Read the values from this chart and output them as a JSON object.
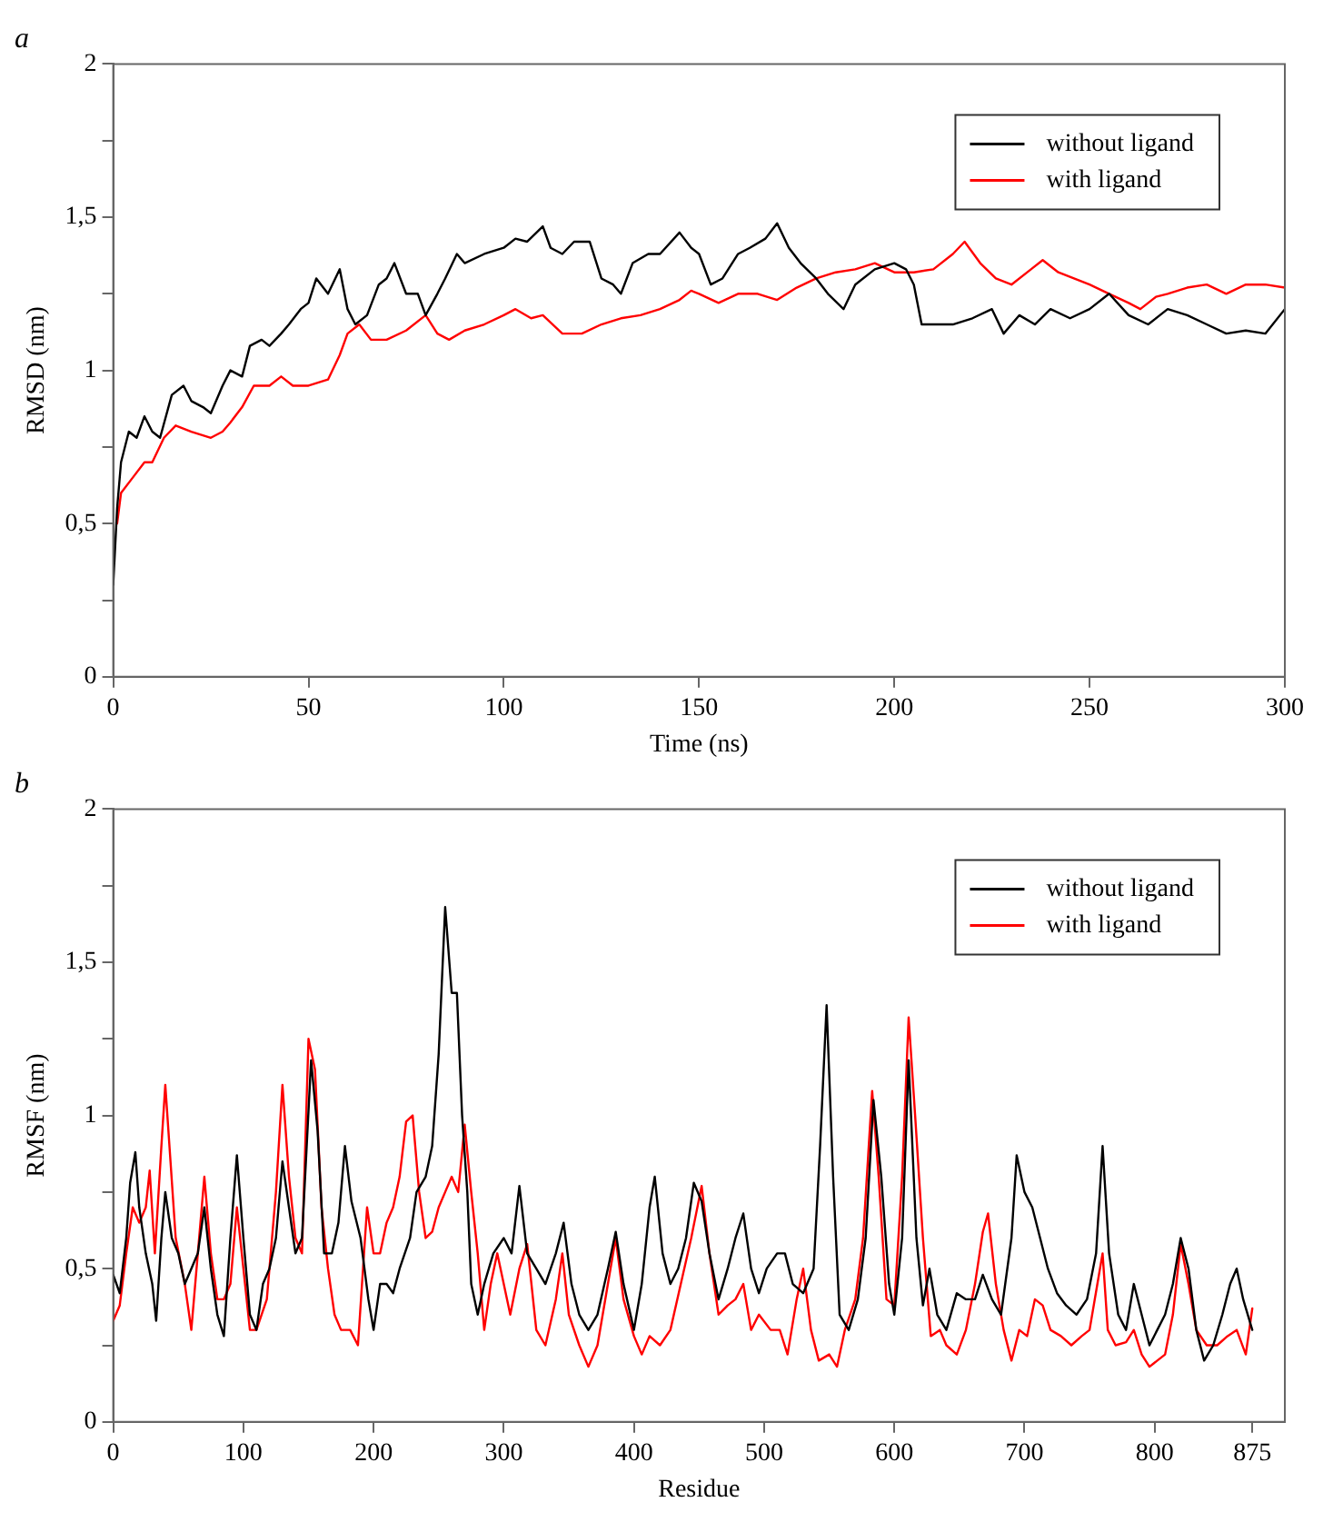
{
  "chart_data": [
    {
      "type": "line",
      "title": "a",
      "xlabel": "Time (ns)",
      "ylabel": "RMSD (nm)",
      "xlim": [
        0,
        300
      ],
      "xticks": [
        0,
        50,
        100,
        150,
        200,
        250,
        300
      ],
      "ylim": [
        0,
        2
      ],
      "yticks": [
        0,
        {
          "value": 0.25,
          "label": null
        },
        {
          "value": 0.5,
          "label": "0,5"
        },
        {
          "value": 0.75,
          "label": null
        },
        1,
        {
          "value": 1.25,
          "label": null
        },
        {
          "value": 1.5,
          "label": "1,5"
        },
        {
          "value": 1.75,
          "label": null
        },
        2
      ],
      "grid": false,
      "legend": "top right",
      "marker": "none",
      "line_style": "solid",
      "series": [
        {
          "name": "without ligand",
          "color": "#000000",
          "x": [
            0,
            1,
            2,
            4,
            6,
            8,
            10,
            12,
            15,
            18,
            20,
            23,
            25,
            28,
            30,
            33,
            35,
            38,
            40,
            43,
            45,
            48,
            50,
            52,
            55,
            58,
            60,
            62,
            65,
            68,
            70,
            72,
            75,
            78,
            80,
            83,
            85,
            88,
            90,
            95,
            100,
            103,
            106,
            110,
            112,
            115,
            118,
            122,
            125,
            128,
            130,
            133,
            137,
            140,
            145,
            148,
            150,
            153,
            156,
            160,
            163,
            167,
            170,
            173,
            176,
            180,
            183,
            187,
            190,
            195,
            200,
            203,
            205,
            207,
            210,
            215,
            220,
            225,
            228,
            232,
            236,
            240,
            245,
            250,
            255,
            260,
            265,
            270,
            275,
            280,
            285,
            290,
            295,
            300
          ],
          "values": [
            0.3,
            0.55,
            0.7,
            0.8,
            0.78,
            0.85,
            0.8,
            0.78,
            0.92,
            0.95,
            0.9,
            0.88,
            0.86,
            0.95,
            1.0,
            0.98,
            1.08,
            1.1,
            1.08,
            1.12,
            1.15,
            1.2,
            1.22,
            1.3,
            1.25,
            1.33,
            1.2,
            1.15,
            1.18,
            1.28,
            1.3,
            1.35,
            1.25,
            1.25,
            1.18,
            1.25,
            1.3,
            1.38,
            1.35,
            1.38,
            1.4,
            1.43,
            1.42,
            1.47,
            1.4,
            1.38,
            1.42,
            1.42,
            1.3,
            1.28,
            1.25,
            1.35,
            1.38,
            1.38,
            1.45,
            1.4,
            1.38,
            1.28,
            1.3,
            1.38,
            1.4,
            1.43,
            1.48,
            1.4,
            1.35,
            1.3,
            1.25,
            1.2,
            1.28,
            1.33,
            1.35,
            1.33,
            1.28,
            1.15,
            1.15,
            1.15,
            1.17,
            1.2,
            1.12,
            1.18,
            1.15,
            1.2,
            1.17,
            1.2,
            1.25,
            1.18,
            1.15,
            1.2,
            1.18,
            1.15,
            1.12,
            1.13,
            1.12,
            1.2
          ]
        },
        {
          "name": "with ligand",
          "color": "#ff0000",
          "x": [
            1,
            2,
            5,
            8,
            10,
            13,
            16,
            20,
            25,
            28,
            30,
            33,
            36,
            40,
            43,
            46,
            50,
            55,
            58,
            60,
            63,
            66,
            70,
            75,
            80,
            83,
            86,
            90,
            95,
            100,
            103,
            107,
            110,
            115,
            120,
            125,
            130,
            135,
            140,
            145,
            148,
            150,
            155,
            160,
            165,
            170,
            175,
            180,
            185,
            190,
            195,
            200,
            205,
            210,
            215,
            218,
            222,
            226,
            230,
            235,
            238,
            242,
            246,
            250,
            255,
            260,
            263,
            267,
            270,
            275,
            280,
            285,
            290,
            295,
            300
          ],
          "values": [
            0.5,
            0.6,
            0.65,
            0.7,
            0.7,
            0.78,
            0.82,
            0.8,
            0.78,
            0.8,
            0.83,
            0.88,
            0.95,
            0.95,
            0.98,
            0.95,
            0.95,
            0.97,
            1.05,
            1.12,
            1.15,
            1.1,
            1.1,
            1.13,
            1.18,
            1.12,
            1.1,
            1.13,
            1.15,
            1.18,
            1.2,
            1.17,
            1.18,
            1.12,
            1.12,
            1.15,
            1.17,
            1.18,
            1.2,
            1.23,
            1.26,
            1.25,
            1.22,
            1.25,
            1.25,
            1.23,
            1.27,
            1.3,
            1.32,
            1.33,
            1.35,
            1.32,
            1.32,
            1.33,
            1.38,
            1.42,
            1.35,
            1.3,
            1.28,
            1.33,
            1.36,
            1.32,
            1.3,
            1.28,
            1.25,
            1.22,
            1.2,
            1.24,
            1.25,
            1.27,
            1.28,
            1.25,
            1.28,
            1.28,
            1.27
          ]
        }
      ]
    },
    {
      "type": "line",
      "title": "b",
      "xlabel": "Residue",
      "ylabel": "RMSF (nm)",
      "xlim": [
        0,
        900
      ],
      "xticks": [
        0,
        100,
        200,
        300,
        400,
        500,
        600,
        700,
        800,
        875
      ],
      "ylim": [
        0,
        2
      ],
      "yticks": [
        0,
        {
          "value": 0.25,
          "label": null
        },
        {
          "value": 0.5,
          "label": "0,5"
        },
        {
          "value": 0.75,
          "label": null
        },
        1,
        {
          "value": 1.25,
          "label": null
        },
        {
          "value": 1.5,
          "label": "1,5"
        },
        {
          "value": 1.75,
          "label": null
        },
        2
      ],
      "grid": false,
      "legend": "top right",
      "marker": "none",
      "line_style": "solid",
      "series": [
        {
          "name": "without ligand",
          "color": "#000000",
          "x": [
            0,
            5,
            10,
            13,
            17,
            20,
            25,
            30,
            33,
            37,
            40,
            45,
            50,
            55,
            60,
            65,
            70,
            75,
            80,
            85,
            90,
            95,
            100,
            105,
            110,
            115,
            120,
            125,
            130,
            135,
            140,
            145,
            152,
            157,
            162,
            168,
            173,
            178,
            183,
            190,
            196,
            200,
            205,
            210,
            215,
            220,
            228,
            233,
            240,
            245,
            250,
            255,
            260,
            264,
            268,
            272,
            275,
            280,
            285,
            292,
            300,
            306,
            312,
            318,
            325,
            332,
            340,
            346,
            352,
            358,
            365,
            372,
            380,
            386,
            392,
            400,
            406,
            412,
            416,
            422,
            428,
            434,
            440,
            446,
            452,
            458,
            465,
            472,
            478,
            484,
            490,
            496,
            502,
            510,
            516,
            522,
            530,
            538,
            543,
            548,
            553,
            558,
            565,
            572,
            578,
            584,
            590,
            596,
            600,
            606,
            611,
            617,
            622,
            627,
            633,
            640,
            648,
            655,
            662,
            668,
            675,
            682,
            690,
            694,
            700,
            706,
            712,
            718,
            725,
            732,
            740,
            748,
            755,
            760,
            765,
            772,
            778,
            784,
            790,
            796,
            802,
            808,
            814,
            820,
            826,
            832,
            838,
            845,
            852,
            858,
            863,
            868,
            875
          ],
          "values": [
            0.48,
            0.42,
            0.6,
            0.78,
            0.88,
            0.7,
            0.55,
            0.45,
            0.33,
            0.6,
            0.75,
            0.6,
            0.55,
            0.45,
            0.5,
            0.55,
            0.7,
            0.5,
            0.35,
            0.28,
            0.6,
            0.87,
            0.6,
            0.35,
            0.3,
            0.45,
            0.5,
            0.6,
            0.85,
            0.7,
            0.55,
            0.6,
            1.18,
            0.95,
            0.55,
            0.55,
            0.65,
            0.9,
            0.72,
            0.6,
            0.4,
            0.3,
            0.45,
            0.45,
            0.42,
            0.5,
            0.6,
            0.75,
            0.8,
            0.9,
            1.2,
            1.68,
            1.4,
            1.4,
            1.0,
            0.75,
            0.45,
            0.35,
            0.45,
            0.55,
            0.6,
            0.55,
            0.77,
            0.55,
            0.5,
            0.45,
            0.55,
            0.65,
            0.45,
            0.35,
            0.3,
            0.35,
            0.5,
            0.62,
            0.45,
            0.3,
            0.45,
            0.7,
            0.8,
            0.55,
            0.45,
            0.5,
            0.6,
            0.78,
            0.72,
            0.55,
            0.4,
            0.5,
            0.6,
            0.68,
            0.5,
            0.42,
            0.5,
            0.55,
            0.55,
            0.45,
            0.42,
            0.5,
            0.9,
            1.36,
            0.8,
            0.35,
            0.3,
            0.4,
            0.6,
            1.05,
            0.8,
            0.45,
            0.35,
            0.6,
            1.18,
            0.6,
            0.38,
            0.5,
            0.35,
            0.3,
            0.42,
            0.4,
            0.4,
            0.48,
            0.4,
            0.35,
            0.6,
            0.87,
            0.75,
            0.7,
            0.6,
            0.5,
            0.42,
            0.38,
            0.35,
            0.4,
            0.55,
            0.9,
            0.55,
            0.35,
            0.3,
            0.45,
            0.35,
            0.25,
            0.3,
            0.35,
            0.45,
            0.6,
            0.5,
            0.3,
            0.2,
            0.25,
            0.35,
            0.45,
            0.5,
            0.4,
            0.3
          ]
        },
        {
          "name": "with ligand",
          "color": "#ff0000",
          "x": [
            0,
            5,
            10,
            15,
            20,
            25,
            28,
            32,
            37,
            40,
            44,
            48,
            55,
            60,
            65,
            70,
            75,
            80,
            85,
            90,
            95,
            100,
            105,
            110,
            118,
            125,
            130,
            135,
            140,
            145,
            150,
            155,
            160,
            165,
            170,
            175,
            182,
            188,
            195,
            200,
            205,
            210,
            215,
            220,
            225,
            230,
            235,
            240,
            245,
            250,
            255,
            260,
            265,
            270,
            275,
            280,
            285,
            290,
            295,
            300,
            305,
            312,
            318,
            325,
            332,
            340,
            345,
            350,
            358,
            365,
            372,
            380,
            386,
            392,
            400,
            406,
            412,
            420,
            428,
            436,
            444,
            452,
            458,
            465,
            472,
            478,
            484,
            490,
            496,
            505,
            512,
            518,
            525,
            530,
            536,
            542,
            550,
            556,
            562,
            570,
            576,
            583,
            588,
            594,
            600,
            606,
            611,
            616,
            622,
            628,
            635,
            640,
            648,
            655,
            662,
            668,
            672,
            678,
            684,
            690,
            696,
            702,
            708,
            714,
            720,
            728,
            736,
            744,
            750,
            756,
            760,
            764,
            770,
            778,
            784,
            790,
            796,
            802,
            808,
            814,
            820,
            826,
            832,
            840,
            848,
            856,
            863,
            870,
            875
          ],
          "values": [
            0.33,
            0.38,
            0.55,
            0.7,
            0.65,
            0.7,
            0.82,
            0.55,
            0.9,
            1.1,
            0.85,
            0.6,
            0.45,
            0.3,
            0.55,
            0.8,
            0.55,
            0.4,
            0.4,
            0.45,
            0.7,
            0.5,
            0.3,
            0.3,
            0.4,
            0.75,
            1.1,
            0.8,
            0.6,
            0.55,
            1.25,
            1.15,
            0.7,
            0.5,
            0.35,
            0.3,
            0.3,
            0.25,
            0.7,
            0.55,
            0.55,
            0.65,
            0.7,
            0.8,
            0.98,
            1.0,
            0.75,
            0.6,
            0.62,
            0.7,
            0.75,
            0.8,
            0.75,
            0.97,
            0.75,
            0.55,
            0.3,
            0.45,
            0.55,
            0.45,
            0.35,
            0.5,
            0.58,
            0.3,
            0.25,
            0.4,
            0.55,
            0.35,
            0.25,
            0.18,
            0.25,
            0.45,
            0.6,
            0.4,
            0.28,
            0.22,
            0.28,
            0.25,
            0.3,
            0.45,
            0.6,
            0.77,
            0.55,
            0.35,
            0.38,
            0.4,
            0.45,
            0.3,
            0.35,
            0.3,
            0.3,
            0.22,
            0.4,
            0.5,
            0.3,
            0.2,
            0.22,
            0.18,
            0.3,
            0.4,
            0.6,
            1.08,
            0.8,
            0.4,
            0.38,
            0.8,
            1.32,
            1.0,
            0.6,
            0.28,
            0.3,
            0.25,
            0.22,
            0.3,
            0.45,
            0.62,
            0.68,
            0.45,
            0.3,
            0.2,
            0.3,
            0.28,
            0.4,
            0.38,
            0.3,
            0.28,
            0.25,
            0.28,
            0.3,
            0.45,
            0.55,
            0.3,
            0.25,
            0.26,
            0.3,
            0.22,
            0.18,
            0.2,
            0.22,
            0.35,
            0.58,
            0.45,
            0.3,
            0.25,
            0.25,
            0.28,
            0.3,
            0.22,
            0.37
          ]
        }
      ]
    }
  ]
}
